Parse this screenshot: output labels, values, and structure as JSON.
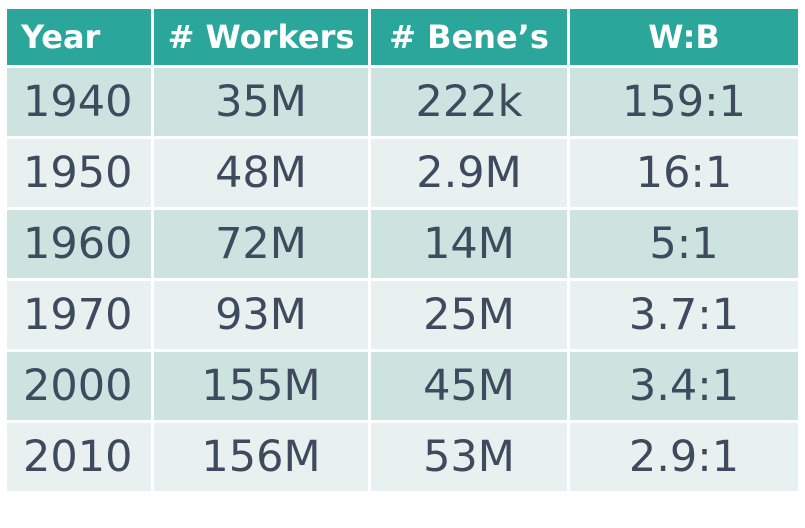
{
  "chart_data": {
    "type": "table",
    "columns": [
      "Year",
      "# Workers",
      "# Bene’s",
      "W:B"
    ],
    "rows": [
      [
        "1940",
        "35M",
        "222k",
        "159:1"
      ],
      [
        "1950",
        "48M",
        "2.9M",
        "16:1"
      ],
      [
        "1960",
        "72M",
        "14M",
        "5:1"
      ],
      [
        "1970",
        "93M",
        "25M",
        "3.7:1"
      ],
      [
        "2000",
        "155M",
        "45M",
        "3.4:1"
      ],
      [
        "2010",
        "156M",
        "53M",
        "2.9:1"
      ]
    ]
  },
  "colors": {
    "header_bg": "#2aa69b",
    "header_text": "#ffffff",
    "row_dark": "#cde3df",
    "row_light": "#e8f1ef",
    "cell_text": "#3e4a5e"
  }
}
